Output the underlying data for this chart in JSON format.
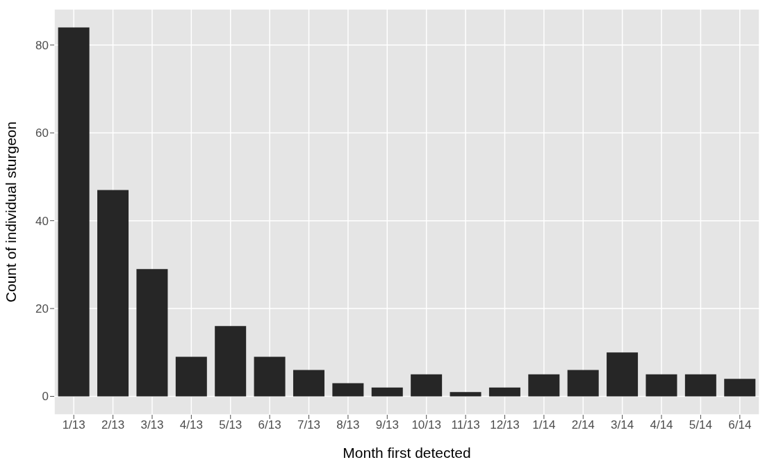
{
  "chart_data": {
    "type": "bar",
    "xlabel": "Month first detected",
    "ylabel": "Count of individual sturgeon",
    "categories": [
      "1/13",
      "2/13",
      "3/13",
      "4/13",
      "5/13",
      "6/13",
      "7/13",
      "8/13",
      "9/13",
      "10/13",
      "11/13",
      "12/13",
      "1/14",
      "2/14",
      "3/14",
      "4/14",
      "5/14",
      "6/14"
    ],
    "values": [
      84,
      47,
      29,
      9,
      16,
      9,
      6,
      3,
      2,
      5,
      1,
      2,
      5,
      6,
      10,
      5,
      5,
      4
    ],
    "color": "#262626",
    "ylim": [
      -4.2,
      88.2
    ],
    "yticks": [
      0,
      20,
      40,
      60,
      80
    ],
    "grid": true
  }
}
